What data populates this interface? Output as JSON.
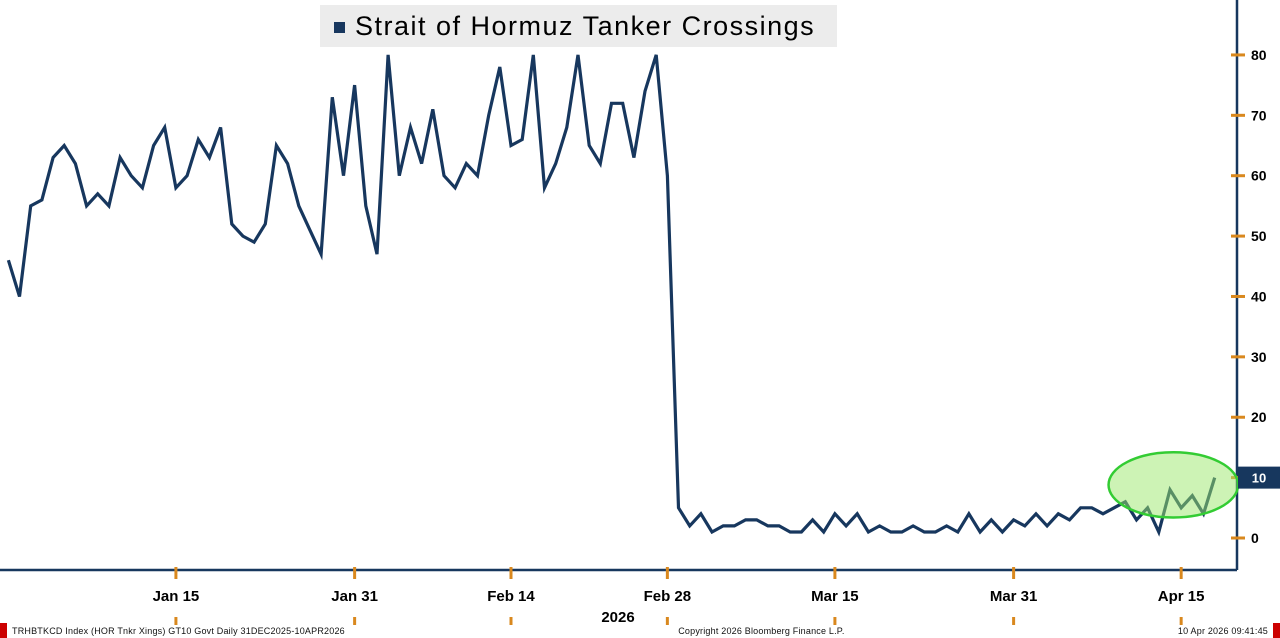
{
  "footer": {
    "left": "TRHBTKCD Index (HOR Tnkr Xings) GT10  Govt Daily 31DEC2025-10APR2026",
    "center": "Copyright 2026 Bloomberg Finance L.P.",
    "right": "10 Apr 2026 09:41:45"
  },
  "colors": {
    "line": "#17375e",
    "axis": "#17375e",
    "tick": "#d9881e",
    "badge_bg": "#17375e",
    "badge_text": "#ffffff",
    "highlight_stroke": "#33cc33",
    "highlight_fill": "#9ce86b",
    "red_strip": "#cc0000",
    "title_bg": "#ececec"
  },
  "chart_data": {
    "type": "line",
    "title": "Strait of Hormuz Tanker Crossings",
    "xlabel": "",
    "ylabel": "",
    "x_unit": "day",
    "x_start_label": "31DEC2025",
    "values": [
      46,
      40,
      55,
      56,
      63,
      65,
      62,
      55,
      57,
      55,
      63,
      60,
      58,
      65,
      68,
      58,
      60,
      66,
      63,
      68,
      52,
      50,
      49,
      52,
      65,
      62,
      55,
      51,
      47,
      73,
      60,
      75,
      55,
      47,
      80,
      60,
      68,
      62,
      71,
      60,
      58,
      62,
      60,
      70,
      78,
      65,
      66,
      80,
      58,
      62,
      68,
      80,
      65,
      62,
      72,
      72,
      63,
      74,
      80,
      60,
      5,
      2,
      4,
      1,
      2,
      2,
      3,
      3,
      2,
      2,
      1,
      1,
      3,
      1,
      4,
      2,
      4,
      1,
      2,
      1,
      1,
      2,
      1,
      1,
      2,
      1,
      4,
      1,
      3,
      1,
      3,
      2,
      4,
      2,
      4,
      3,
      5,
      5,
      4,
      5,
      6,
      3,
      5,
      1,
      8,
      5,
      7,
      4,
      10
    ],
    "x_ticks": [
      {
        "day": 15,
        "label": "Jan 15"
      },
      {
        "day": 31,
        "label": "Jan 31"
      },
      {
        "day": 45,
        "label": "Feb 14"
      },
      {
        "day": 59,
        "label": "Feb 28"
      },
      {
        "day": 74,
        "label": "Mar 15"
      },
      {
        "day": 90,
        "label": "Mar 31"
      },
      {
        "day": 105,
        "label": "Apr 15"
      }
    ],
    "year_label": "2026",
    "y_ticks": [
      0,
      10,
      20,
      30,
      40,
      50,
      60,
      70,
      80
    ],
    "ylim": [
      -5.3,
      89.1
    ],
    "xlim": [
      -0.75,
      110
    ],
    "grid": false,
    "legend_position": "top-center",
    "last_value": 10,
    "last_value_label": "10",
    "highlight_ellipse": {
      "center_day": 104.3,
      "center_value": 8.8,
      "rx_days": 5.8,
      "ry_values": 5.4,
      "note": "recent uptick circled"
    }
  }
}
